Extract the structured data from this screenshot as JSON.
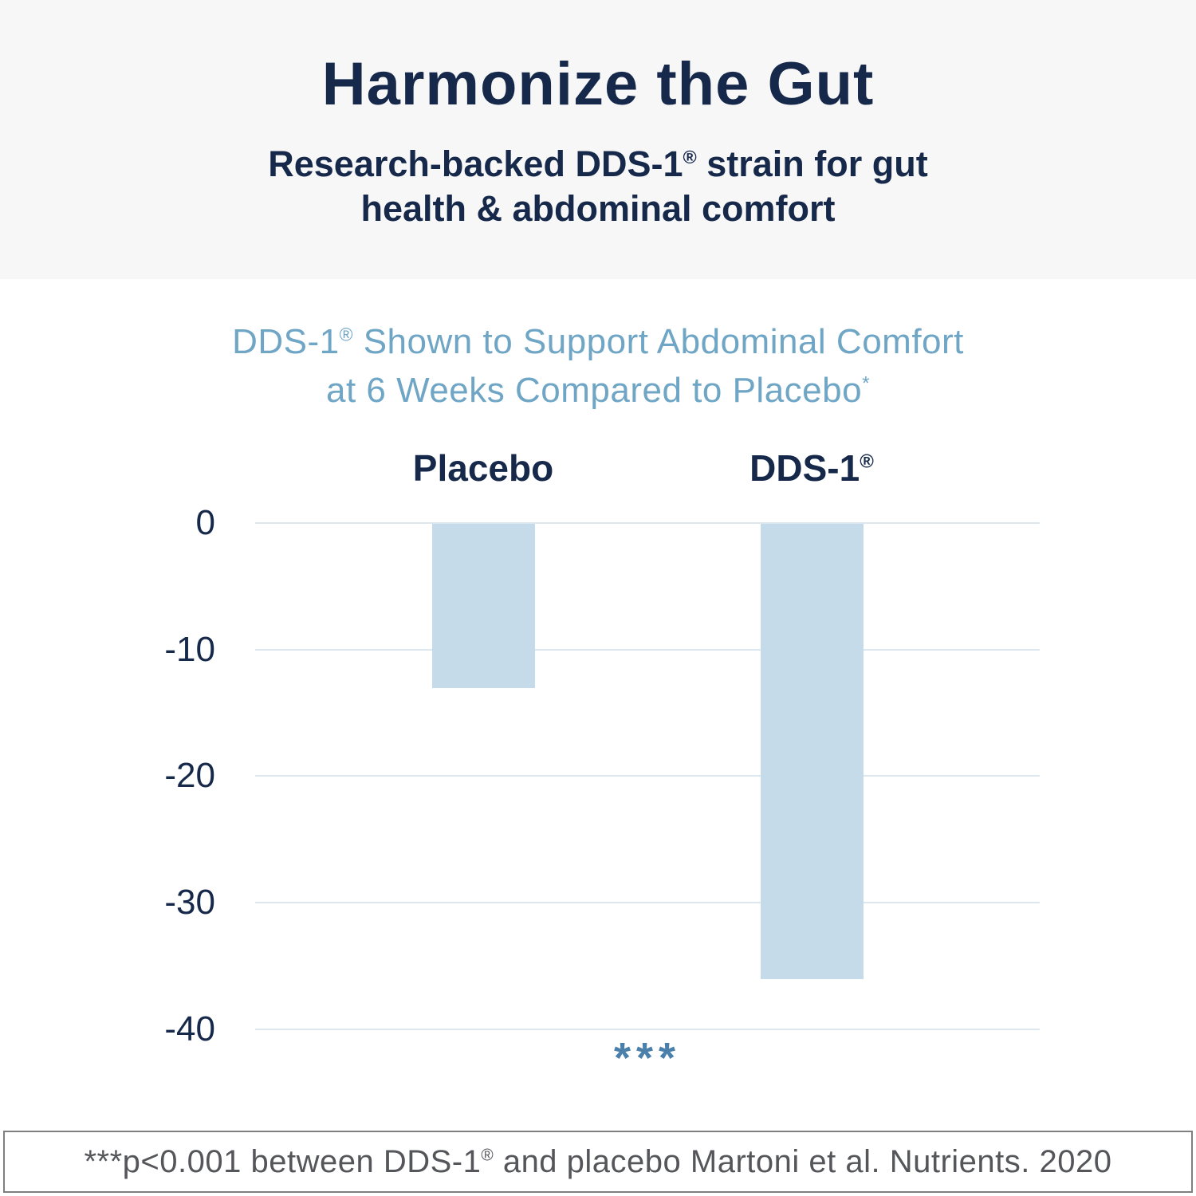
{
  "header": {
    "title": "Harmonize the Gut",
    "subtitle_line1_pre": "Research-backed DDS-1",
    "reg_mark": "®",
    "subtitle_line1_post": " strain for gut",
    "subtitle_line2": "health & abdominal comfort"
  },
  "chart": {
    "title_line1_pre": "DDS-1",
    "reg_mark": "®",
    "title_line1_post": " Shown to Support Abdominal Comfort",
    "title_line2": "at 6 Weeks Compared to Placebo",
    "title_footnote_marker": "*",
    "bar_labels": [
      {
        "base": "Placebo",
        "reg": ""
      },
      {
        "base": "DDS-1",
        "reg": "®"
      }
    ],
    "significance_marker": "***"
  },
  "chart_data": {
    "type": "bar",
    "title": "DDS-1® Shown to Support Abdominal Comfort at 6 Weeks Compared to Placebo*",
    "categories": [
      "Placebo",
      "DDS-1®"
    ],
    "values": [
      -13,
      -36
    ],
    "yticks": [
      0,
      -10,
      -20,
      -30,
      -40
    ],
    "ylim": [
      -40,
      0
    ],
    "xlabel": "",
    "ylabel": "",
    "grid": true,
    "legend": "none",
    "bar_color": "#c5dbe9",
    "gridline_color": "#dde7ef",
    "annotation": "*** (p<0.001, shown between bars below axis)"
  },
  "footer": {
    "text_pre": "***p<0.001 between DDS-1",
    "reg_mark": "®",
    "text_post": " and placebo Martoni et al. Nutrients. 2020"
  },
  "colors": {
    "navy": "#16294b",
    "steel_blue_title": "#6fa5c5",
    "bar_fill": "#c5dbe9",
    "significance_blue": "#4b80ab",
    "header_band_bg": "#f7f7f8",
    "gridline": "#dde7ef",
    "footer_border": "#7f7f7f",
    "footer_text": "#55565a"
  }
}
